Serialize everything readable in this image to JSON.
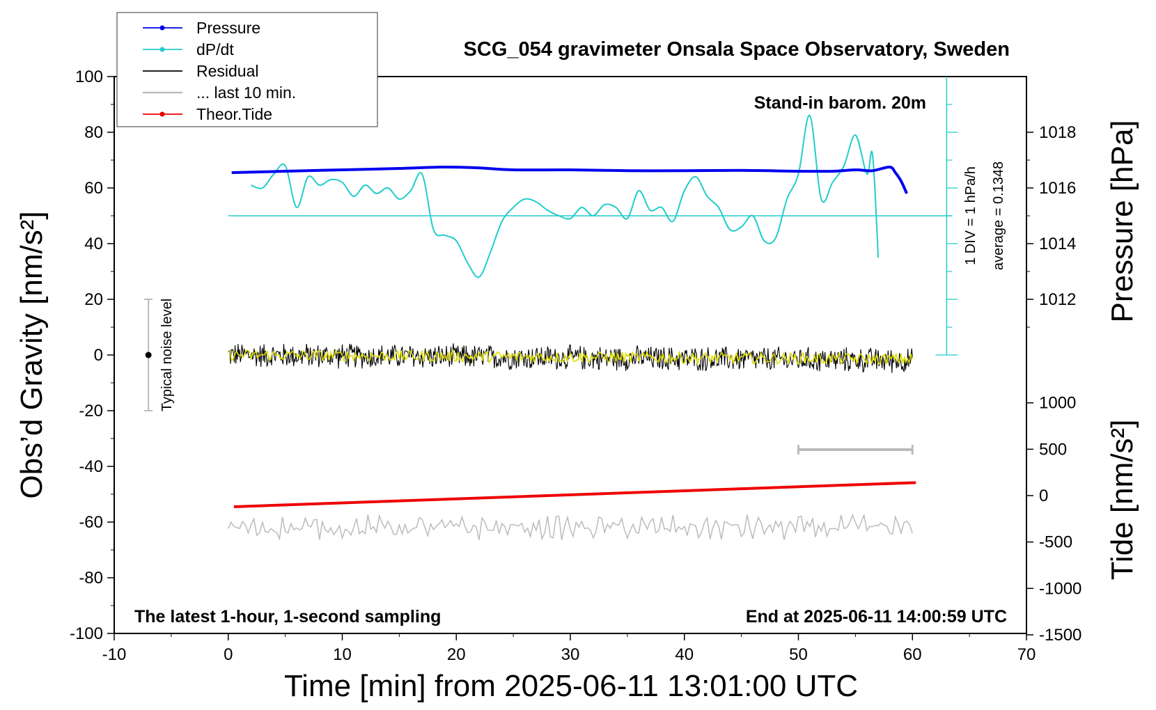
{
  "chart_data": {
    "type": "line",
    "title": "SCG_054 gravimeter Onsala Space Observatory, Sweden",
    "xlabel": "Time [min] from 2025-06-11 13:01:00 UTC",
    "ylabel_left": "Obs’d Gravity [nm/s²]",
    "ylabel_right_top": "Pressure [hPa]",
    "ylabel_right_bottom": "Tide [nm/s²]",
    "xlim": [
      -10,
      70
    ],
    "ylim_left": [
      -100,
      100
    ],
    "x_ticks": [
      "-10",
      "0",
      "10",
      "20",
      "30",
      "40",
      "50",
      "60",
      "70"
    ],
    "y_ticks_left": [
      "100",
      "80",
      "60",
      "40",
      "20",
      "0",
      "-20",
      "-40",
      "-60",
      "-80",
      "-100"
    ],
    "pressure_ticks": [
      "1018",
      "1016",
      "1014",
      "1012"
    ],
    "tide_ticks": [
      "1000",
      "500",
      "0",
      "-500",
      "-1000",
      "-1500"
    ],
    "legend": [
      {
        "label": "Pressure",
        "color": "#0000ee",
        "marker": true
      },
      {
        "label": "dP/dt",
        "color": "#22cccc",
        "marker": true
      },
      {
        "label": "Residual",
        "color": "#000000",
        "marker": false
      },
      {
        "label": "... last 10 min.",
        "color": "#bbbbbb",
        "marker": false
      },
      {
        "label": "Theor.Tide",
        "color": "#ee0000",
        "marker": true
      }
    ],
    "annotations": {
      "barometer": "Stand-in barom. 20m",
      "noise": "Typical noise level",
      "scale": "1 DIV = 1 hPa/h",
      "average": "average = 0.1348",
      "bottom_left": "The latest 1-hour, 1-second sampling",
      "bottom_right": "End at 2025-06-11 14:00:59 UTC"
    },
    "noise_bar": {
      "x": -7,
      "y_min": -20,
      "y_max": 20,
      "center": 0
    },
    "last10_bar": {
      "x_start": 50,
      "x_end": 60
    },
    "series": [
      {
        "name": "Pressure",
        "color": "#0000ee",
        "axis": "pressure_hPa",
        "x": [
          0.3,
          5,
          10,
          15,
          19,
          22,
          25,
          30,
          35,
          40,
          45,
          50,
          53,
          55,
          56.5,
          58,
          58.5,
          59,
          59.5
        ],
        "y": [
          1016.55,
          1016.6,
          1016.65,
          1016.7,
          1016.75,
          1016.72,
          1016.65,
          1016.65,
          1016.62,
          1016.62,
          1016.63,
          1016.6,
          1016.6,
          1016.65,
          1016.62,
          1016.75,
          1016.55,
          1016.25,
          1015.8
        ]
      },
      {
        "name": "dP/dt",
        "color": "#22cccc",
        "axis": "pressure_hPa",
        "x": [
          2,
          3,
          4,
          5,
          6,
          7,
          8,
          9,
          10,
          11,
          12,
          13,
          14,
          15,
          16,
          17,
          18,
          19,
          20,
          21,
          22,
          23,
          24,
          25,
          26,
          27,
          28,
          29,
          30,
          31,
          32,
          33,
          34,
          35,
          36,
          37,
          38,
          39,
          40,
          41,
          42,
          43,
          44,
          45,
          46,
          47,
          48,
          49,
          50,
          51,
          52,
          53,
          54,
          55,
          56,
          56.5,
          57
        ],
        "y": [
          6.1,
          6.0,
          6.5,
          6.8,
          5.3,
          6.4,
          6.1,
          6.3,
          6.2,
          5.7,
          6.1,
          5.8,
          6.0,
          5.6,
          5.9,
          6.5,
          4.5,
          4.3,
          4.1,
          3.3,
          2.8,
          3.7,
          4.8,
          5.3,
          5.6,
          5.5,
          5.2,
          5.0,
          4.9,
          5.3,
          5.0,
          5.4,
          5.3,
          4.9,
          5.9,
          5.2,
          5.3,
          4.8,
          5.9,
          6.4,
          5.7,
          5.3,
          4.5,
          4.6,
          5.0,
          4.1,
          4.2,
          5.6,
          6.5,
          8.6,
          5.6,
          6.2,
          6.8,
          7.9,
          6.5,
          7.2,
          3.5
        ]
      },
      {
        "name": "Residual",
        "color": "#000000",
        "axis": "gravity_nm_s2",
        "x_range": [
          0,
          60
        ],
        "amplitude": 5,
        "end_offset": -2
      },
      {
        "name": "Residual (smoothed)",
        "color": "#dddd00",
        "axis": "gravity_nm_s2",
        "x_range": [
          0,
          60
        ],
        "amplitude": 2
      },
      {
        "name": "... last 10 min.",
        "color": "#bbbbbb",
        "axis": "gravity_nm_s2",
        "x_range": [
          0,
          60
        ],
        "center": -62,
        "amplitude": 3
      },
      {
        "name": "Theor.Tide",
        "color": "#ee0000",
        "axis": "tide_nm_s2",
        "x": [
          0.5,
          60.3
        ],
        "y": [
          -120,
          140
        ]
      }
    ]
  }
}
